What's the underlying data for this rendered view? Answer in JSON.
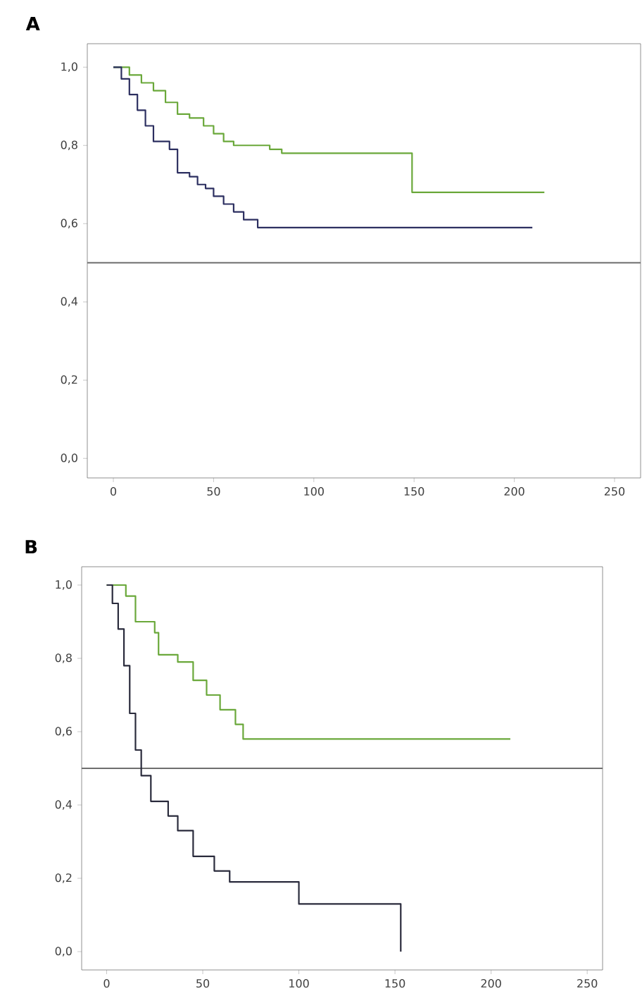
{
  "chart_data": [
    {
      "type": "step",
      "title": "A",
      "xlim": [
        -13,
        263
      ],
      "ylim": [
        -0.05,
        1.06
      ],
      "xticks": [
        0,
        50,
        100,
        150,
        200,
        250
      ],
      "yticks": [
        {
          "value": 0.0,
          "label": "0,0"
        },
        {
          "value": 0.2,
          "label": "0,2"
        },
        {
          "value": 0.4,
          "label": "0,4"
        },
        {
          "value": 0.6,
          "label": "0,6"
        },
        {
          "value": 0.8,
          "label": "0,8"
        },
        {
          "value": 1.0,
          "label": "1,0"
        }
      ],
      "ref_lines": [
        {
          "axis": "y",
          "value": 0.5,
          "color": "#6e6e6e"
        }
      ],
      "series": [
        {
          "color": "#6aa83a",
          "x": [
            0,
            8,
            14,
            20,
            26,
            32,
            38,
            45,
            50,
            55,
            60,
            78,
            84,
            149,
            215
          ],
          "values": [
            1.0,
            0.98,
            0.96,
            0.94,
            0.91,
            0.88,
            0.87,
            0.85,
            0.83,
            0.81,
            0.8,
            0.79,
            0.78,
            0.68,
            0.68
          ]
        },
        {
          "color": "#2c2f60",
          "x": [
            0,
            4,
            8,
            12,
            16,
            20,
            28,
            32,
            38,
            42,
            46,
            50,
            55,
            60,
            65,
            72,
            209
          ],
          "values": [
            1.0,
            0.97,
            0.93,
            0.89,
            0.85,
            0.81,
            0.79,
            0.73,
            0.72,
            0.7,
            0.69,
            0.67,
            0.65,
            0.63,
            0.61,
            0.59,
            0.59
          ]
        }
      ]
    },
    {
      "type": "step",
      "title": "B",
      "xlim": [
        -13,
        258
      ],
      "ylim": [
        -0.05,
        1.05
      ],
      "xticks": [
        0,
        50,
        100,
        150,
        200,
        250
      ],
      "yticks": [
        {
          "value": 0.0,
          "label": "0,0"
        },
        {
          "value": 0.2,
          "label": "0,2"
        },
        {
          "value": 0.4,
          "label": "0,4"
        },
        {
          "value": 0.6,
          "label": "0,6"
        },
        {
          "value": 0.8,
          "label": "0,8"
        },
        {
          "value": 1.0,
          "label": "1,0"
        }
      ],
      "ref_lines": [
        {
          "axis": "y",
          "value": 0.5,
          "color": "#6e6e6e"
        }
      ],
      "series": [
        {
          "color": "#6aa83a",
          "x": [
            0,
            10,
            15,
            25,
            27,
            37,
            45,
            52,
            59,
            67,
            71,
            210
          ],
          "values": [
            1.0,
            0.97,
            0.9,
            0.87,
            0.81,
            0.79,
            0.74,
            0.7,
            0.66,
            0.62,
            0.58,
            0.58
          ]
        },
        {
          "color": "#2a2b3c",
          "x": [
            0,
            3,
            6,
            9,
            12,
            15,
            18,
            23,
            32,
            37,
            45,
            56,
            64,
            100,
            153
          ],
          "values": [
            1.0,
            0.95,
            0.88,
            0.78,
            0.65,
            0.55,
            0.48,
            0.41,
            0.37,
            0.33,
            0.26,
            0.22,
            0.19,
            0.13,
            0.0
          ]
        }
      ]
    }
  ]
}
